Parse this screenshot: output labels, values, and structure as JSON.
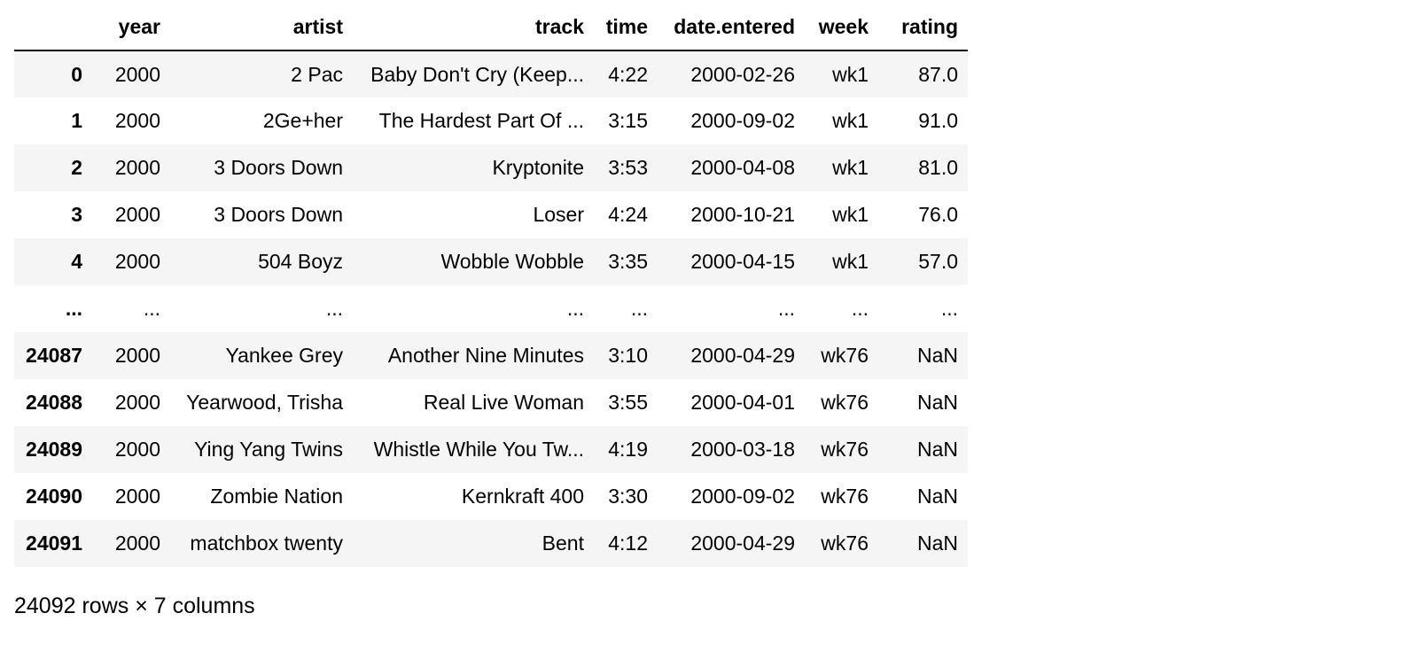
{
  "table": {
    "columns": [
      "",
      "year",
      "artist",
      "track",
      "time",
      "date.entered",
      "week",
      "rating"
    ],
    "rows": [
      {
        "index": "0",
        "cells": [
          "2000",
          "2 Pac",
          "Baby Don't Cry (Keep...",
          "4:22",
          "2000-02-26",
          "wk1",
          "87.0"
        ]
      },
      {
        "index": "1",
        "cells": [
          "2000",
          "2Ge+her",
          "The Hardest Part Of ...",
          "3:15",
          "2000-09-02",
          "wk1",
          "91.0"
        ]
      },
      {
        "index": "2",
        "cells": [
          "2000",
          "3 Doors Down",
          "Kryptonite",
          "3:53",
          "2000-04-08",
          "wk1",
          "81.0"
        ]
      },
      {
        "index": "3",
        "cells": [
          "2000",
          "3 Doors Down",
          "Loser",
          "4:24",
          "2000-10-21",
          "wk1",
          "76.0"
        ]
      },
      {
        "index": "4",
        "cells": [
          "2000",
          "504 Boyz",
          "Wobble Wobble",
          "3:35",
          "2000-04-15",
          "wk1",
          "57.0"
        ]
      },
      {
        "index": "...",
        "cells": [
          "...",
          "...",
          "...",
          "...",
          "...",
          "...",
          "..."
        ]
      },
      {
        "index": "24087",
        "cells": [
          "2000",
          "Yankee Grey",
          "Another Nine Minutes",
          "3:10",
          "2000-04-29",
          "wk76",
          "NaN"
        ]
      },
      {
        "index": "24088",
        "cells": [
          "2000",
          "Yearwood, Trisha",
          "Real Live Woman",
          "3:55",
          "2000-04-01",
          "wk76",
          "NaN"
        ]
      },
      {
        "index": "24089",
        "cells": [
          "2000",
          "Ying Yang Twins",
          "Whistle While You Tw...",
          "4:19",
          "2000-03-18",
          "wk76",
          "NaN"
        ]
      },
      {
        "index": "24090",
        "cells": [
          "2000",
          "Zombie Nation",
          "Kernkraft 400",
          "3:30",
          "2000-09-02",
          "wk76",
          "NaN"
        ]
      },
      {
        "index": "24091",
        "cells": [
          "2000",
          "matchbox twenty",
          "Bent",
          "4:12",
          "2000-04-29",
          "wk76",
          "NaN"
        ]
      }
    ]
  },
  "summary": "24092 rows × 7 columns",
  "colors": {
    "stripe": "#f5f5f5",
    "header_rule": "#000000",
    "text": "#000000"
  }
}
